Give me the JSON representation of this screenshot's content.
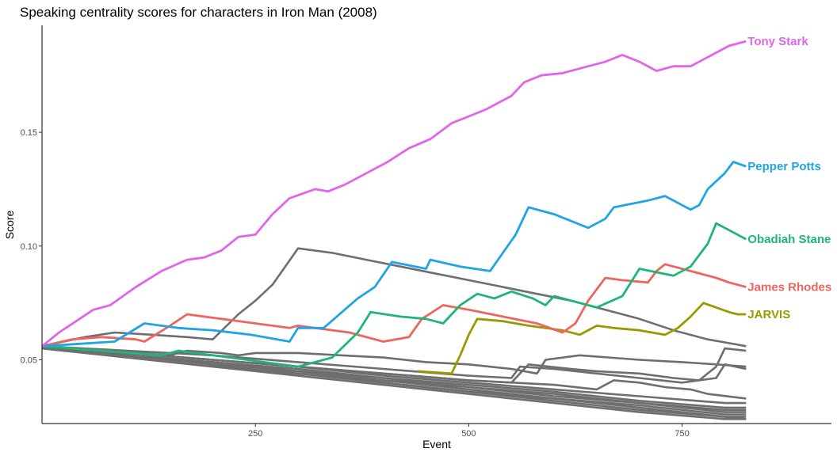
{
  "chart_data": {
    "type": "line",
    "title": "Speaking centrality scores for characters in Iron Man (2008)",
    "xlabel": "Event",
    "ylabel": "Score",
    "xlim": [
      0,
      925
    ],
    "ylim": [
      0.022,
      0.197
    ],
    "x_ticks": [
      250,
      500,
      750
    ],
    "y_ticks": [
      0.05,
      0.1,
      0.15
    ],
    "x_tick_labels": [
      "250",
      "500",
      "750"
    ],
    "y_tick_labels": [
      "0.05",
      "0.10",
      "0.15"
    ],
    "grid": false,
    "series": [
      {
        "name": "Tony Stark",
        "color": "#E264E9",
        "points": [
          [
            0,
            0.056
          ],
          [
            20,
            0.062
          ],
          [
            40,
            0.067
          ],
          [
            60,
            0.072
          ],
          [
            80,
            0.074
          ],
          [
            110,
            0.082
          ],
          [
            140,
            0.089
          ],
          [
            170,
            0.094
          ],
          [
            190,
            0.095
          ],
          [
            210,
            0.098
          ],
          [
            230,
            0.104
          ],
          [
            250,
            0.105
          ],
          [
            270,
            0.114
          ],
          [
            290,
            0.121
          ],
          [
            305,
            0.123
          ],
          [
            320,
            0.125
          ],
          [
            335,
            0.124
          ],
          [
            355,
            0.127
          ],
          [
            380,
            0.132
          ],
          [
            405,
            0.137
          ],
          [
            430,
            0.143
          ],
          [
            455,
            0.147
          ],
          [
            480,
            0.154
          ],
          [
            500,
            0.157
          ],
          [
            520,
            0.16
          ],
          [
            550,
            0.166
          ],
          [
            565,
            0.172
          ],
          [
            585,
            0.175
          ],
          [
            610,
            0.176
          ],
          [
            640,
            0.179
          ],
          [
            660,
            0.181
          ],
          [
            680,
            0.184
          ],
          [
            700,
            0.181
          ],
          [
            720,
            0.177
          ],
          [
            740,
            0.179
          ],
          [
            760,
            0.179
          ],
          [
            785,
            0.184
          ],
          [
            805,
            0.188
          ],
          [
            825,
            0.19
          ]
        ]
      },
      {
        "name": "Pepper Potts",
        "color": "#1FA4E4",
        "points": [
          [
            0,
            0.056
          ],
          [
            85,
            0.058
          ],
          [
            120,
            0.066
          ],
          [
            160,
            0.064
          ],
          [
            200,
            0.063
          ],
          [
            245,
            0.061
          ],
          [
            290,
            0.058
          ],
          [
            300,
            0.064
          ],
          [
            330,
            0.064
          ],
          [
            370,
            0.077
          ],
          [
            390,
            0.082
          ],
          [
            410,
            0.093
          ],
          [
            450,
            0.09
          ],
          [
            455,
            0.094
          ],
          [
            490,
            0.091
          ],
          [
            525,
            0.089
          ],
          [
            555,
            0.105
          ],
          [
            570,
            0.117
          ],
          [
            600,
            0.114
          ],
          [
            640,
            0.108
          ],
          [
            660,
            0.112
          ],
          [
            670,
            0.117
          ],
          [
            710,
            0.12
          ],
          [
            730,
            0.122
          ],
          [
            760,
            0.116
          ],
          [
            770,
            0.118
          ],
          [
            780,
            0.125
          ],
          [
            800,
            0.132
          ],
          [
            810,
            0.137
          ],
          [
            825,
            0.135
          ]
        ]
      },
      {
        "name": "Obadiah Stane",
        "color": "#1FB57A",
        "points": [
          [
            0,
            0.056
          ],
          [
            140,
            0.052
          ],
          [
            160,
            0.054
          ],
          [
            200,
            0.052
          ],
          [
            240,
            0.05
          ],
          [
            280,
            0.048
          ],
          [
            300,
            0.047
          ],
          [
            320,
            0.049
          ],
          [
            340,
            0.051
          ],
          [
            370,
            0.062
          ],
          [
            385,
            0.071
          ],
          [
            420,
            0.069
          ],
          [
            450,
            0.068
          ],
          [
            470,
            0.066
          ],
          [
            490,
            0.074
          ],
          [
            510,
            0.079
          ],
          [
            530,
            0.077
          ],
          [
            550,
            0.08
          ],
          [
            575,
            0.077
          ],
          [
            590,
            0.074
          ],
          [
            600,
            0.078
          ],
          [
            630,
            0.075
          ],
          [
            650,
            0.073
          ],
          [
            680,
            0.078
          ],
          [
            690,
            0.084
          ],
          [
            700,
            0.09
          ],
          [
            740,
            0.087
          ],
          [
            760,
            0.091
          ],
          [
            780,
            0.101
          ],
          [
            790,
            0.11
          ],
          [
            805,
            0.107
          ],
          [
            825,
            0.103
          ]
        ]
      },
      {
        "name": "James Rhodes",
        "color": "#EE6560",
        "points": [
          [
            0,
            0.056
          ],
          [
            35,
            0.059
          ],
          [
            70,
            0.06
          ],
          [
            110,
            0.059
          ],
          [
            120,
            0.058
          ],
          [
            150,
            0.065
          ],
          [
            170,
            0.07
          ],
          [
            210,
            0.068
          ],
          [
            250,
            0.066
          ],
          [
            290,
            0.064
          ],
          [
            300,
            0.065
          ],
          [
            320,
            0.064
          ],
          [
            360,
            0.062
          ],
          [
            400,
            0.058
          ],
          [
            430,
            0.06
          ],
          [
            445,
            0.068
          ],
          [
            470,
            0.074
          ],
          [
            500,
            0.072
          ],
          [
            540,
            0.069
          ],
          [
            580,
            0.066
          ],
          [
            610,
            0.062
          ],
          [
            625,
            0.066
          ],
          [
            640,
            0.076
          ],
          [
            660,
            0.086
          ],
          [
            680,
            0.085
          ],
          [
            710,
            0.084
          ],
          [
            720,
            0.089
          ],
          [
            730,
            0.092
          ],
          [
            760,
            0.089
          ],
          [
            790,
            0.086
          ],
          [
            805,
            0.084
          ],
          [
            815,
            0.083
          ],
          [
            825,
            0.082
          ]
        ]
      },
      {
        "name": "JARVIS",
        "color": "#9A9A00",
        "points": [
          [
            440,
            0.045
          ],
          [
            480,
            0.044
          ],
          [
            490,
            0.052
          ],
          [
            500,
            0.061
          ],
          [
            510,
            0.068
          ],
          [
            540,
            0.067
          ],
          [
            570,
            0.065
          ],
          [
            610,
            0.063
          ],
          [
            630,
            0.061
          ],
          [
            650,
            0.065
          ],
          [
            670,
            0.064
          ],
          [
            700,
            0.063
          ],
          [
            730,
            0.061
          ],
          [
            745,
            0.064
          ],
          [
            760,
            0.069
          ],
          [
            775,
            0.075
          ],
          [
            790,
            0.073
          ],
          [
            805,
            0.071
          ],
          [
            815,
            0.07
          ],
          [
            825,
            0.07
          ]
        ]
      }
    ],
    "background_series_color": "#6E6E6E",
    "background_series": [
      [
        [
          0,
          0.056
        ],
        [
          50,
          0.06
        ],
        [
          85,
          0.062
        ],
        [
          130,
          0.061
        ],
        [
          170,
          0.06
        ],
        [
          200,
          0.059
        ],
        [
          230,
          0.07
        ],
        [
          250,
          0.076
        ],
        [
          270,
          0.083
        ],
        [
          285,
          0.091
        ],
        [
          300,
          0.099
        ],
        [
          340,
          0.097
        ],
        [
          380,
          0.094
        ],
        [
          420,
          0.091
        ],
        [
          460,
          0.088
        ],
        [
          500,
          0.085
        ],
        [
          540,
          0.082
        ],
        [
          580,
          0.079
        ],
        [
          620,
          0.076
        ],
        [
          660,
          0.072
        ],
        [
          700,
          0.068
        ],
        [
          740,
          0.063
        ],
        [
          780,
          0.059
        ],
        [
          810,
          0.057
        ],
        [
          825,
          0.056
        ]
      ],
      [
        [
          0,
          0.056
        ],
        [
          150,
          0.052
        ],
        [
          170,
          0.054
        ],
        [
          210,
          0.053
        ],
        [
          230,
          0.052
        ],
        [
          250,
          0.053
        ],
        [
          300,
          0.053
        ],
        [
          350,
          0.052
        ],
        [
          400,
          0.051
        ],
        [
          450,
          0.049
        ],
        [
          500,
          0.048
        ],
        [
          550,
          0.046
        ],
        [
          580,
          0.044
        ],
        [
          590,
          0.05
        ],
        [
          630,
          0.052
        ],
        [
          700,
          0.05
        ],
        [
          750,
          0.049
        ],
        [
          790,
          0.048
        ],
        [
          825,
          0.047
        ]
      ],
      [
        [
          0,
          0.056
        ],
        [
          100,
          0.054
        ],
        [
          200,
          0.052
        ],
        [
          300,
          0.049
        ],
        [
          400,
          0.046
        ],
        [
          500,
          0.043
        ],
        [
          550,
          0.042
        ],
        [
          560,
          0.047
        ],
        [
          600,
          0.046
        ],
        [
          650,
          0.044
        ],
        [
          700,
          0.042
        ],
        [
          750,
          0.04
        ],
        [
          790,
          0.042
        ],
        [
          800,
          0.048
        ],
        [
          825,
          0.046
        ]
      ],
      [
        [
          0,
          0.056
        ],
        [
          100,
          0.053
        ],
        [
          200,
          0.05
        ],
        [
          300,
          0.047
        ],
        [
          400,
          0.044
        ],
        [
          500,
          0.041
        ],
        [
          550,
          0.04
        ],
        [
          570,
          0.048
        ],
        [
          620,
          0.046
        ],
        [
          650,
          0.045
        ],
        [
          700,
          0.044
        ],
        [
          740,
          0.042
        ],
        [
          770,
          0.041
        ],
        [
          790,
          0.047
        ],
        [
          800,
          0.055
        ],
        [
          825,
          0.054
        ]
      ],
      [
        [
          0,
          0.056
        ],
        [
          100,
          0.053
        ],
        [
          200,
          0.05
        ],
        [
          300,
          0.047
        ],
        [
          400,
          0.044
        ],
        [
          500,
          0.041
        ],
        [
          600,
          0.039
        ],
        [
          650,
          0.037
        ],
        [
          670,
          0.041
        ],
        [
          700,
          0.04
        ],
        [
          730,
          0.038
        ],
        [
          760,
          0.037
        ],
        [
          780,
          0.035
        ],
        [
          825,
          0.033
        ]
      ],
      [
        [
          0,
          0.056
        ],
        [
          100,
          0.053
        ],
        [
          200,
          0.05
        ],
        [
          300,
          0.047
        ],
        [
          400,
          0.043
        ],
        [
          500,
          0.04
        ],
        [
          600,
          0.037
        ],
        [
          700,
          0.034
        ],
        [
          800,
          0.031
        ],
        [
          825,
          0.031
        ]
      ],
      [
        [
          0,
          0.056
        ],
        [
          100,
          0.052
        ],
        [
          200,
          0.049
        ],
        [
          300,
          0.046
        ],
        [
          400,
          0.042
        ],
        [
          500,
          0.039
        ],
        [
          600,
          0.036
        ],
        [
          700,
          0.032
        ],
        [
          800,
          0.029
        ],
        [
          825,
          0.029
        ]
      ],
      [
        [
          0,
          0.056
        ],
        [
          100,
          0.052
        ],
        [
          200,
          0.049
        ],
        [
          300,
          0.045
        ],
        [
          400,
          0.042
        ],
        [
          500,
          0.038
        ],
        [
          600,
          0.035
        ],
        [
          700,
          0.031
        ],
        [
          800,
          0.028
        ],
        [
          825,
          0.028
        ]
      ],
      [
        [
          0,
          0.056
        ],
        [
          100,
          0.052
        ],
        [
          200,
          0.048
        ],
        [
          300,
          0.045
        ],
        [
          400,
          0.041
        ],
        [
          500,
          0.038
        ],
        [
          600,
          0.034
        ],
        [
          700,
          0.031
        ],
        [
          800,
          0.027
        ],
        [
          825,
          0.027
        ]
      ],
      [
        [
          0,
          0.056
        ],
        [
          100,
          0.052
        ],
        [
          200,
          0.048
        ],
        [
          300,
          0.044
        ],
        [
          400,
          0.041
        ],
        [
          500,
          0.037
        ],
        [
          600,
          0.033
        ],
        [
          700,
          0.03
        ],
        [
          800,
          0.026
        ],
        [
          825,
          0.026
        ]
      ],
      [
        [
          0,
          0.056
        ],
        [
          100,
          0.052
        ],
        [
          200,
          0.048
        ],
        [
          300,
          0.044
        ],
        [
          400,
          0.04
        ],
        [
          500,
          0.036
        ],
        [
          600,
          0.033
        ],
        [
          700,
          0.029
        ],
        [
          800,
          0.025
        ],
        [
          825,
          0.025
        ]
      ],
      [
        [
          0,
          0.055
        ],
        [
          100,
          0.051
        ],
        [
          200,
          0.047
        ],
        [
          300,
          0.044
        ],
        [
          400,
          0.04
        ],
        [
          500,
          0.036
        ],
        [
          600,
          0.032
        ],
        [
          700,
          0.028
        ],
        [
          800,
          0.025
        ],
        [
          825,
          0.024
        ]
      ],
      [
        [
          0,
          0.055
        ],
        [
          100,
          0.051
        ],
        [
          200,
          0.047
        ],
        [
          300,
          0.043
        ],
        [
          400,
          0.039
        ],
        [
          500,
          0.035
        ],
        [
          600,
          0.031
        ],
        [
          700,
          0.027
        ],
        [
          800,
          0.024
        ],
        [
          825,
          0.024
        ]
      ]
    ]
  }
}
